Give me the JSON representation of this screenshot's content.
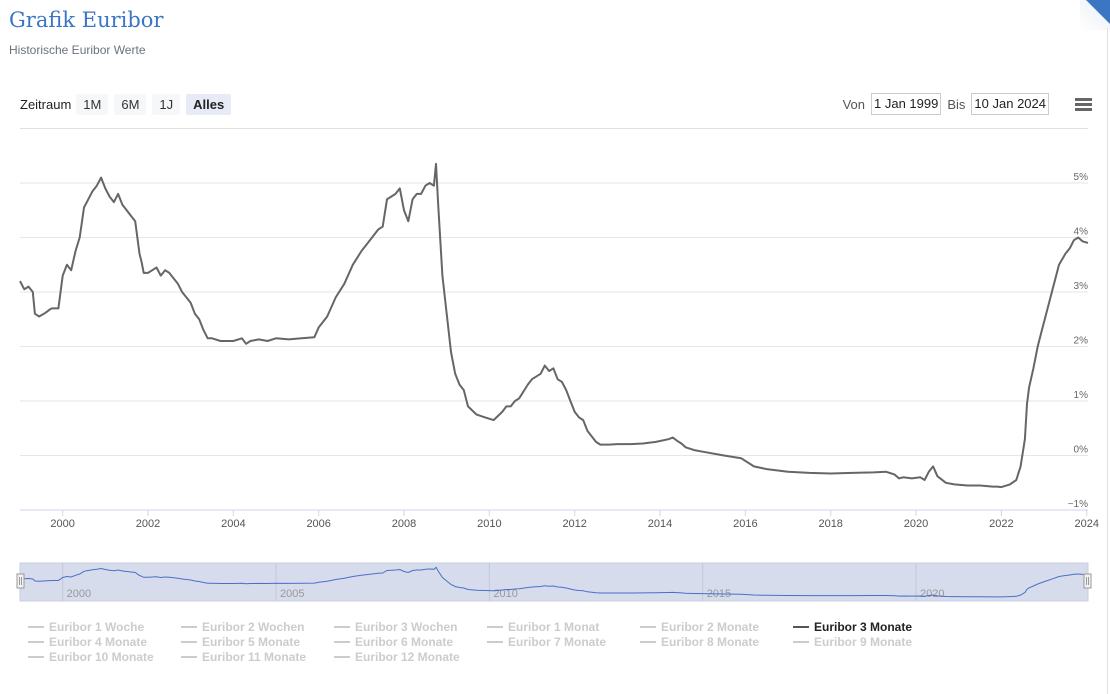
{
  "header": {
    "title": "Grafik Euribor",
    "subtitle": "Historische Euribor Werte"
  },
  "range_selector": {
    "label": "Zeitraum",
    "buttons": [
      {
        "label": "1M",
        "active": false
      },
      {
        "label": "6M",
        "active": false
      },
      {
        "label": "1J",
        "active": false
      },
      {
        "label": "Alles",
        "active": true
      }
    ],
    "from_label": "Von",
    "from_value": "1 Jan 1999",
    "to_label": "Bis",
    "to_value": "10 Jan 2024"
  },
  "menu": {
    "icon": "hamburger-menu-icon"
  },
  "colors": {
    "title": "#3a76c4",
    "series_line": "#666666",
    "navigator_line": "#4a6fc8",
    "navigator_fill": "#d6dcec",
    "grid": "#e6e6e6",
    "corner_accent": "#3a76c4"
  },
  "navigator": {
    "year_labels": [
      "2000",
      "2005",
      "2010",
      "2015",
      "2020"
    ]
  },
  "legend": {
    "items": [
      {
        "label": "Euribor 1 Woche",
        "active": false
      },
      {
        "label": "Euribor 2 Wochen",
        "active": false
      },
      {
        "label": "Euribor 3 Wochen",
        "active": false
      },
      {
        "label": "Euribor 1 Monat",
        "active": false
      },
      {
        "label": "Euribor 2 Monate",
        "active": false
      },
      {
        "label": "Euribor 3 Monate",
        "active": true
      },
      {
        "label": "Euribor 4 Monate",
        "active": false
      },
      {
        "label": "Euribor 5 Monate",
        "active": false
      },
      {
        "label": "Euribor 6 Monate",
        "active": false
      },
      {
        "label": "Euribor 7 Monate",
        "active": false
      },
      {
        "label": "Euribor 8 Monate",
        "active": false
      },
      {
        "label": "Euribor 9 Monate",
        "active": false
      },
      {
        "label": "Euribor 10 Monate",
        "active": false
      },
      {
        "label": "Euribor 11 Monate",
        "active": false
      },
      {
        "label": "Euribor 12 Monate",
        "active": false
      }
    ]
  },
  "chart_data": {
    "type": "line",
    "title": "Grafik Euribor",
    "subtitle": "Historische Euribor Werte",
    "xlabel": "",
    "ylabel": "",
    "x_ticks": [
      "2000",
      "2002",
      "2004",
      "2006",
      "2008",
      "2010",
      "2012",
      "2014",
      "2016",
      "2018",
      "2020",
      "2022",
      "2024"
    ],
    "y_ticks": [
      "-1%",
      "0%",
      "1%",
      "2%",
      "3%",
      "4%",
      "5%"
    ],
    "xlim": [
      1999.0,
      2024.03
    ],
    "ylim": [
      -1,
      5
    ],
    "grid": true,
    "legend_position": "bottom",
    "series": [
      {
        "name": "Euribor 3 Monate",
        "x": [
          1999.0,
          1999.1,
          1999.2,
          1999.3,
          1999.35,
          1999.45,
          1999.6,
          1999.7,
          1999.75,
          1999.8,
          1999.9,
          2000.0,
          2000.1,
          2000.2,
          2000.3,
          2000.4,
          2000.5,
          2000.6,
          2000.7,
          2000.8,
          2000.9,
          2001.0,
          2001.1,
          2001.2,
          2001.3,
          2001.4,
          2001.5,
          2001.6,
          2001.7,
          2001.8,
          2001.85,
          2001.9,
          2002.0,
          2002.1,
          2002.2,
          2002.3,
          2002.4,
          2002.5,
          2002.6,
          2002.7,
          2002.8,
          2002.9,
          2003.0,
          2003.1,
          2003.2,
          2003.3,
          2003.4,
          2003.5,
          2003.7,
          2004.0,
          2004.2,
          2004.3,
          2004.4,
          2004.6,
          2004.8,
          2005.0,
          2005.3,
          2005.6,
          2005.9,
          2006.0,
          2006.2,
          2006.4,
          2006.6,
          2006.8,
          2007.0,
          2007.2,
          2007.4,
          2007.5,
          2007.6,
          2007.7,
          2007.8,
          2007.9,
          2008.0,
          2008.1,
          2008.2,
          2008.3,
          2008.4,
          2008.5,
          2008.6,
          2008.7,
          2008.75,
          2008.8,
          2008.9,
          2009.0,
          2009.1,
          2009.2,
          2009.3,
          2009.4,
          2009.5,
          2009.7,
          2009.9,
          2010.1,
          2010.3,
          2010.4,
          2010.5,
          2010.6,
          2010.7,
          2010.9,
          2011.0,
          2011.2,
          2011.3,
          2011.4,
          2011.5,
          2011.6,
          2011.7,
          2011.8,
          2011.9,
          2012.0,
          2012.1,
          2012.2,
          2012.3,
          2012.5,
          2012.6,
          2012.8,
          2013.0,
          2013.3,
          2013.6,
          2013.9,
          2014.2,
          2014.3,
          2014.4,
          2014.5,
          2014.6,
          2014.8,
          2015.0,
          2015.5,
          2015.9,
          2016.2,
          2016.5,
          2017.0,
          2017.5,
          2018.0,
          2018.5,
          2019.0,
          2019.3,
          2019.5,
          2019.6,
          2019.7,
          2019.9,
          2020.1,
          2020.2,
          2020.3,
          2020.4,
          2020.5,
          2020.7,
          2020.9,
          2021.2,
          2021.5,
          2021.8,
          2021.9,
          2022.0,
          2022.2,
          2022.35,
          2022.45,
          2022.55,
          2022.6,
          2022.65,
          2022.75,
          2022.85,
          2022.95,
          2023.05,
          2023.2,
          2023.35,
          2023.5,
          2023.6,
          2023.7,
          2023.8,
          2023.9,
          2024.03
        ],
        "values": [
          3.2,
          3.05,
          3.1,
          3.0,
          2.6,
          2.55,
          2.62,
          2.68,
          2.7,
          2.7,
          2.7,
          3.3,
          3.5,
          3.4,
          3.75,
          4.0,
          4.55,
          4.7,
          4.85,
          4.95,
          5.1,
          4.9,
          4.75,
          4.65,
          4.8,
          4.6,
          4.5,
          4.4,
          4.3,
          3.7,
          3.55,
          3.35,
          3.35,
          3.4,
          3.45,
          3.3,
          3.4,
          3.35,
          3.25,
          3.15,
          3.0,
          2.9,
          2.8,
          2.6,
          2.5,
          2.3,
          2.15,
          2.15,
          2.1,
          2.1,
          2.15,
          2.05,
          2.1,
          2.13,
          2.1,
          2.15,
          2.13,
          2.15,
          2.17,
          2.35,
          2.55,
          2.9,
          3.15,
          3.5,
          3.75,
          3.95,
          4.15,
          4.2,
          4.7,
          4.75,
          4.8,
          4.9,
          4.5,
          4.3,
          4.7,
          4.8,
          4.8,
          4.95,
          5.0,
          4.95,
          5.35,
          4.6,
          3.3,
          2.6,
          1.9,
          1.5,
          1.3,
          1.2,
          0.9,
          0.75,
          0.7,
          0.65,
          0.8,
          0.9,
          0.9,
          1.0,
          1.05,
          1.3,
          1.4,
          1.5,
          1.65,
          1.55,
          1.6,
          1.4,
          1.35,
          1.2,
          1.0,
          0.8,
          0.7,
          0.65,
          0.45,
          0.25,
          0.2,
          0.2,
          0.21,
          0.21,
          0.22,
          0.25,
          0.3,
          0.33,
          0.27,
          0.22,
          0.15,
          0.1,
          0.07,
          0.0,
          -0.05,
          -0.2,
          -0.25,
          -0.3,
          -0.32,
          -0.33,
          -0.32,
          -0.31,
          -0.3,
          -0.35,
          -0.42,
          -0.4,
          -0.42,
          -0.4,
          -0.45,
          -0.3,
          -0.2,
          -0.38,
          -0.5,
          -0.53,
          -0.55,
          -0.55,
          -0.57,
          -0.57,
          -0.58,
          -0.53,
          -0.45,
          -0.2,
          0.3,
          0.95,
          1.25,
          1.6,
          2.0,
          2.3,
          2.6,
          3.05,
          3.5,
          3.7,
          3.8,
          3.95,
          4.0,
          3.93,
          3.9
        ]
      }
    ]
  }
}
